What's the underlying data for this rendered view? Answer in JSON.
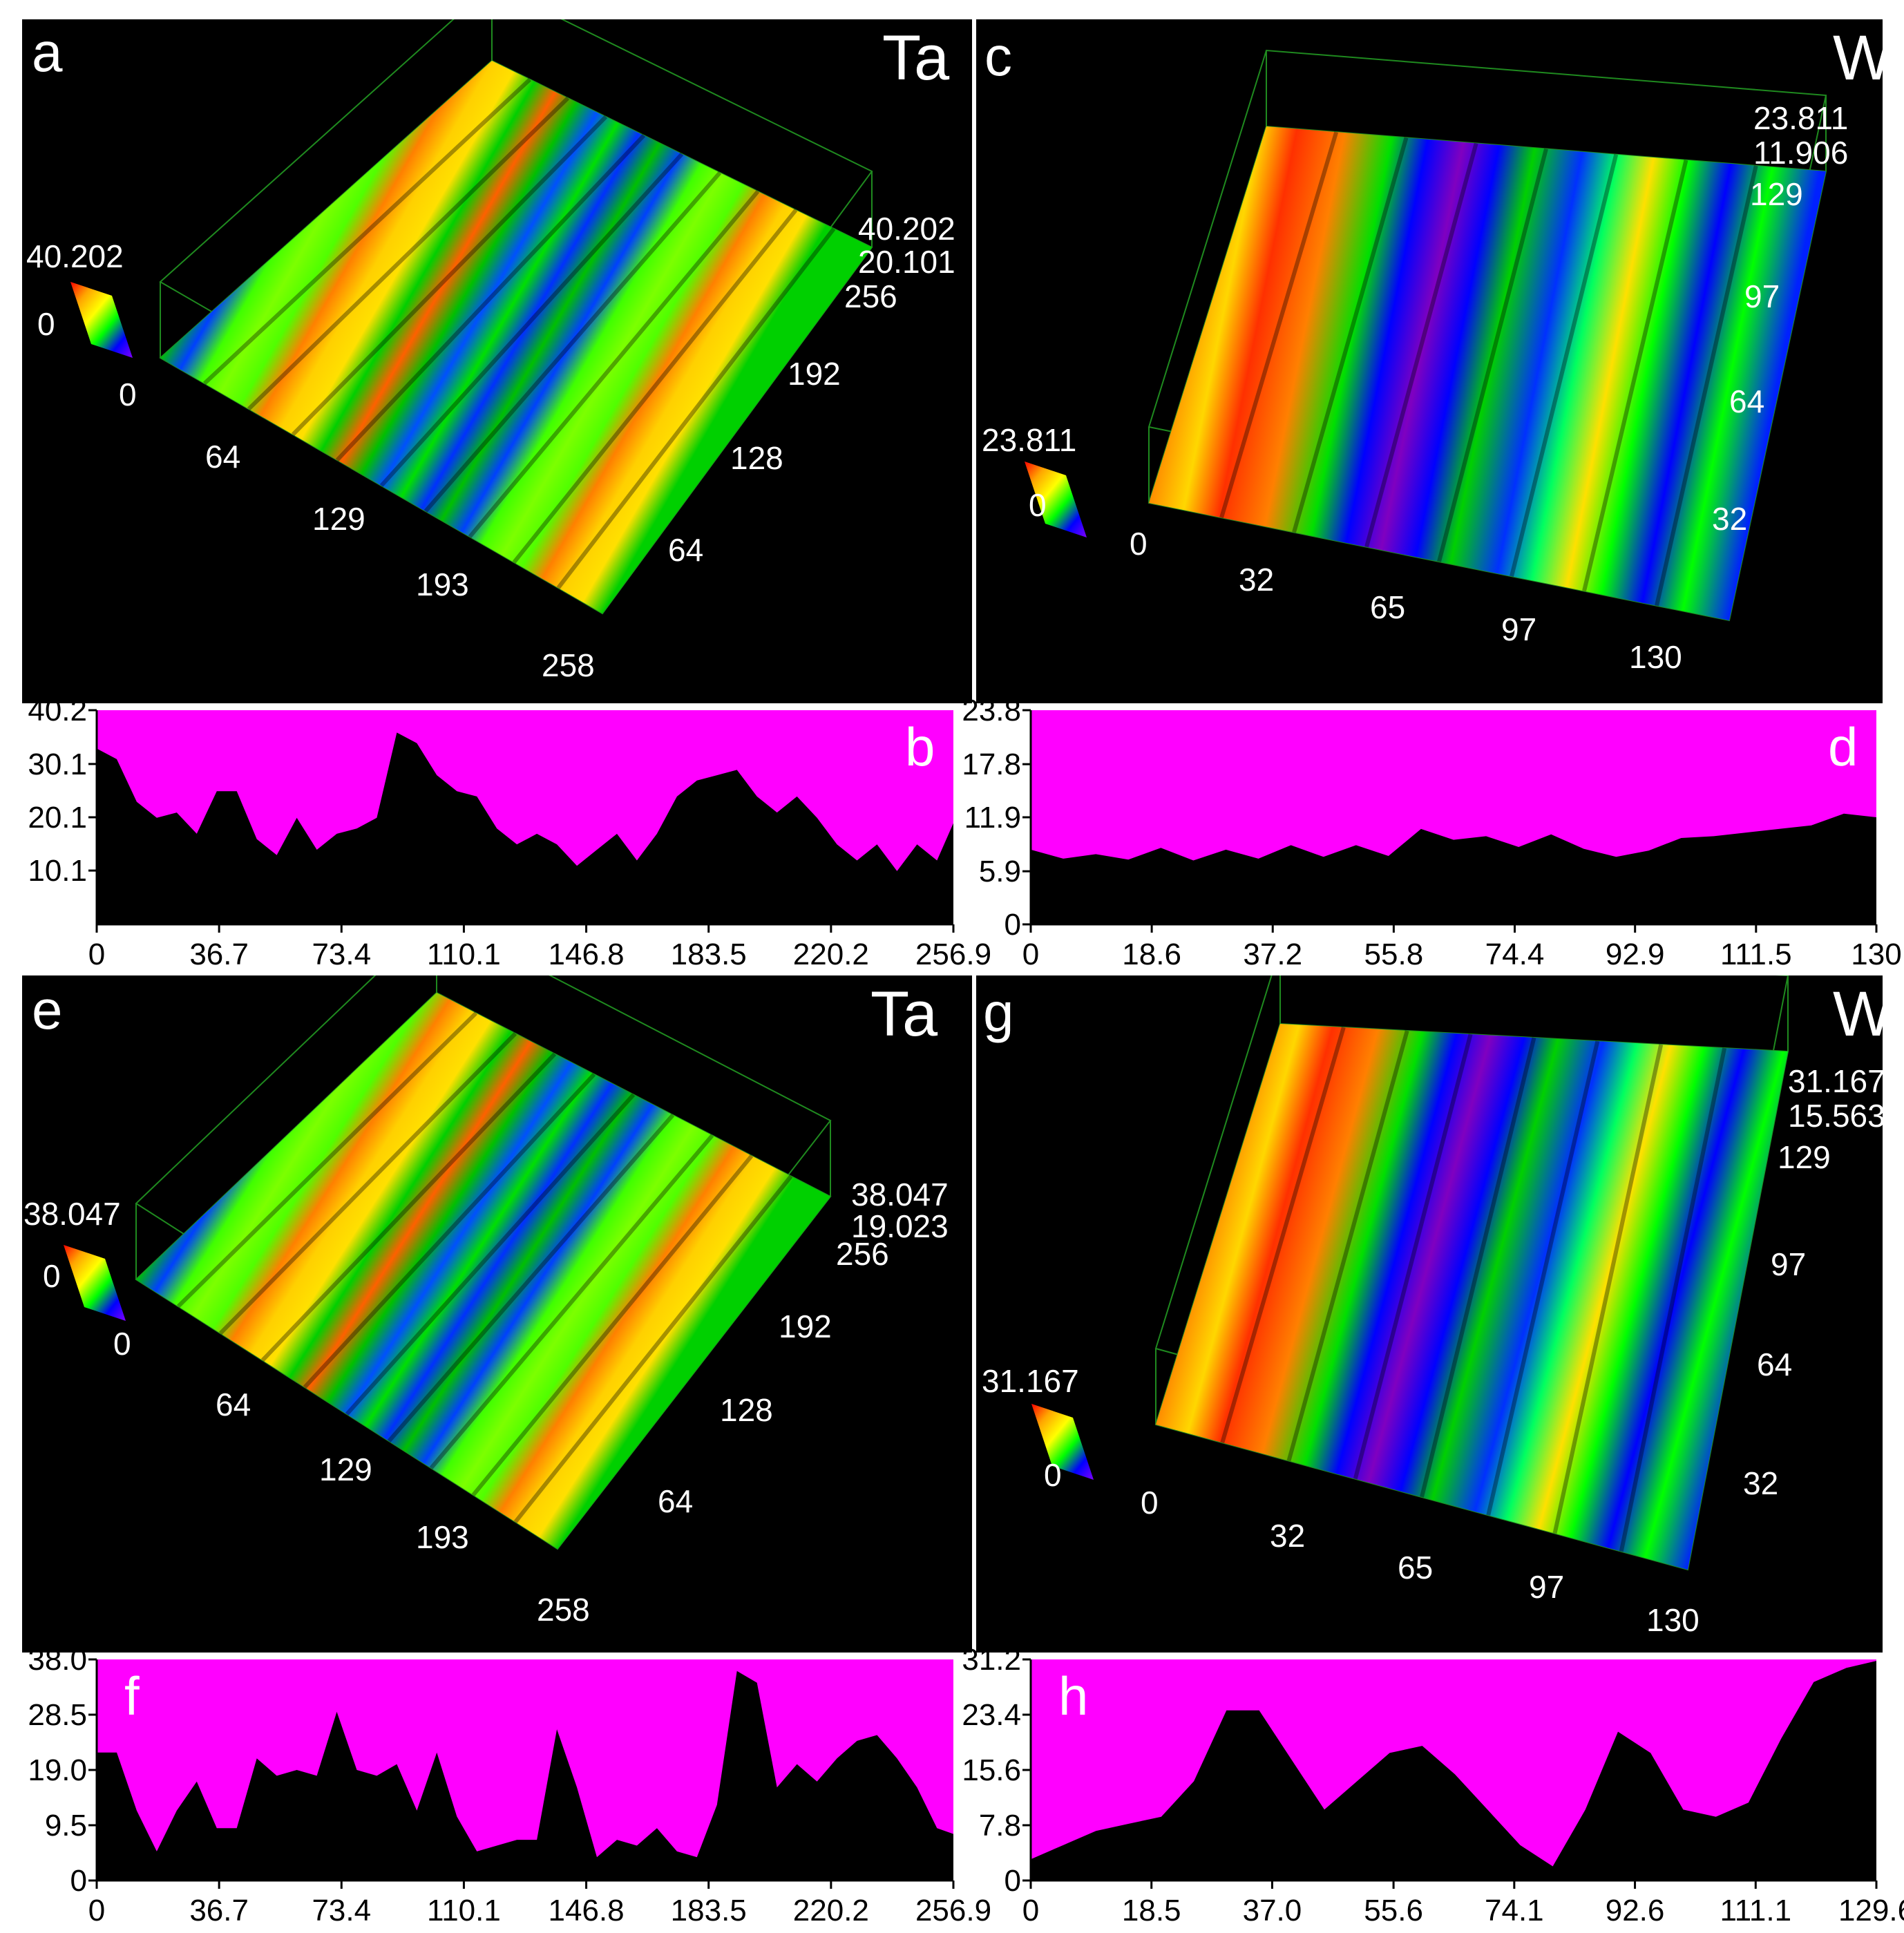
{
  "panels3d": [
    {
      "id": "a",
      "letter": "a",
      "material": "Ta",
      "scale": {
        "max": "40.202",
        "min": "0"
      },
      "z_labels": [
        "40.202",
        "20.101"
      ],
      "y_ticks": [
        "256",
        "192",
        "128",
        "64"
      ],
      "x_ticks": [
        "0",
        "64",
        "129",
        "193",
        "258"
      ],
      "style": "ta"
    },
    {
      "id": "c",
      "letter": "c",
      "material": "W",
      "scale": {
        "max": "23.811",
        "min": "0"
      },
      "z_labels": [
        "23.811",
        "11.906"
      ],
      "y_ticks": [
        "129",
        "97",
        "64",
        "32"
      ],
      "x_ticks": [
        "0",
        "32",
        "65",
        "97",
        "130"
      ],
      "style": "w"
    },
    {
      "id": "e",
      "letter": "e",
      "material": "Ta",
      "scale": {
        "max": "38.047",
        "min": "0"
      },
      "z_labels": [
        "38.047",
        "19.023"
      ],
      "y_ticks": [
        "256",
        "192",
        "128",
        "64"
      ],
      "x_ticks": [
        "0",
        "64",
        "129",
        "193",
        "258"
      ],
      "style": "ta"
    },
    {
      "id": "g",
      "letter": "g",
      "material": "W",
      "scale": {
        "max": "31.167",
        "min": "0"
      },
      "z_labels": [
        "31.167",
        "15.563"
      ],
      "y_ticks": [
        "129",
        "97",
        "64",
        "32"
      ],
      "x_ticks": [
        "0",
        "32",
        "65",
        "97",
        "130"
      ],
      "style": "w"
    }
  ],
  "chart_data": [
    {
      "id": "b",
      "letter": "b",
      "type": "area",
      "xlim": [
        0,
        256.9
      ],
      "ylim": [
        0,
        40.2
      ],
      "x_ticks": [
        "0",
        "36.7",
        "73.4",
        "110.1",
        "146.8",
        "183.5",
        "220.2",
        "256.9"
      ],
      "y_ticks": [
        "40.2",
        "30.1",
        "20.1",
        "10.1"
      ],
      "colors": {
        "fill": "#000000",
        "background": "#ff00ff"
      },
      "x": [
        0,
        6,
        12,
        18,
        24,
        30,
        36,
        42,
        48,
        54,
        60,
        66,
        72,
        78,
        84,
        90,
        96,
        102,
        108,
        114,
        120,
        126,
        132,
        138,
        144,
        150,
        156,
        162,
        168,
        174,
        180,
        186,
        192,
        198,
        204,
        210,
        216,
        222,
        228,
        234,
        240,
        246,
        252,
        256.9
      ],
      "y": [
        33,
        31,
        23,
        20,
        21,
        17,
        25,
        25,
        16,
        13,
        20,
        14,
        17,
        18,
        20,
        36,
        34,
        28,
        25,
        24,
        18,
        15,
        17,
        15,
        11,
        14,
        17,
        12,
        17,
        24,
        27,
        28,
        29,
        24,
        21,
        24,
        20,
        15,
        12,
        15,
        10,
        15,
        12,
        19
      ]
    },
    {
      "id": "d",
      "letter": "d",
      "type": "area",
      "xlim": [
        0,
        130
      ],
      "ylim": [
        0,
        23.8
      ],
      "x_ticks": [
        "0",
        "18.6",
        "37.2",
        "55.8",
        "74.4",
        "92.9",
        "111.5",
        "130"
      ],
      "y_ticks": [
        "23.8",
        "17.8",
        "11.9",
        "5.9",
        "0"
      ],
      "colors": {
        "fill": "#000000",
        "background": "#ff00ff"
      },
      "x": [
        0,
        5,
        10,
        15,
        20,
        25,
        30,
        35,
        40,
        45,
        50,
        55,
        60,
        65,
        70,
        75,
        80,
        85,
        90,
        95,
        100,
        105,
        110,
        115,
        120,
        125,
        130
      ],
      "y": [
        8.3,
        7.3,
        7.8,
        7.2,
        8.5,
        7.1,
        8.3,
        7.3,
        8.8,
        7.5,
        8.8,
        7.6,
        10.6,
        9.4,
        9.8,
        8.6,
        10.0,
        8.4,
        7.5,
        8.2,
        9.6,
        9.8,
        10.2,
        10.6,
        11.0,
        12.3,
        11.9
      ]
    },
    {
      "id": "f",
      "letter": "f",
      "type": "area",
      "xlim": [
        0,
        256.9
      ],
      "ylim": [
        0,
        38.0
      ],
      "x_ticks": [
        "0",
        "36.7",
        "73.4",
        "110.1",
        "146.8",
        "183.5",
        "220.2",
        "256.9"
      ],
      "y_ticks": [
        "38.0",
        "28.5",
        "19.0",
        "9.5",
        "0"
      ],
      "colors": {
        "fill": "#000000",
        "background": "#ff00ff"
      },
      "x": [
        0,
        6,
        12,
        18,
        24,
        30,
        36,
        42,
        48,
        54,
        60,
        66,
        72,
        78,
        84,
        90,
        96,
        102,
        108,
        114,
        120,
        126,
        132,
        138,
        144,
        150,
        156,
        162,
        168,
        174,
        180,
        186,
        192,
        198,
        204,
        210,
        216,
        222,
        228,
        234,
        240,
        246,
        252,
        256.9
      ],
      "y": [
        22,
        22,
        12,
        5,
        12,
        17,
        9,
        9,
        21,
        18,
        19,
        18,
        29,
        19,
        18,
        20,
        12,
        22,
        11,
        5,
        6,
        7,
        7,
        26,
        16,
        4,
        7,
        6,
        9,
        5,
        4,
        13,
        36,
        34,
        16,
        20,
        17,
        21,
        24,
        25,
        21,
        16,
        9,
        8
      ]
    },
    {
      "id": "h",
      "letter": "h",
      "type": "area",
      "xlim": [
        0,
        129.6
      ],
      "ylim": [
        0,
        31.2
      ],
      "x_ticks": [
        "0",
        "18.5",
        "37.0",
        "55.6",
        "74.1",
        "92.6",
        "111.1",
        "129.6"
      ],
      "y_ticks": [
        "31.2",
        "23.4",
        "15.6",
        "7.8",
        "0"
      ],
      "colors": {
        "fill": "#000000",
        "background": "#ff00ff"
      },
      "x": [
        0,
        5,
        10,
        15,
        20,
        25,
        30,
        35,
        40,
        45,
        50,
        55,
        60,
        65,
        70,
        75,
        80,
        85,
        90,
        95,
        100,
        105,
        110,
        115,
        120,
        125,
        129.6
      ],
      "y": [
        3,
        5,
        7,
        8,
        9,
        14,
        24,
        24,
        17,
        10,
        14,
        18,
        19,
        15,
        10,
        5,
        2,
        10,
        21,
        18,
        10,
        9,
        11,
        20,
        28,
        30,
        31
      ]
    }
  ]
}
